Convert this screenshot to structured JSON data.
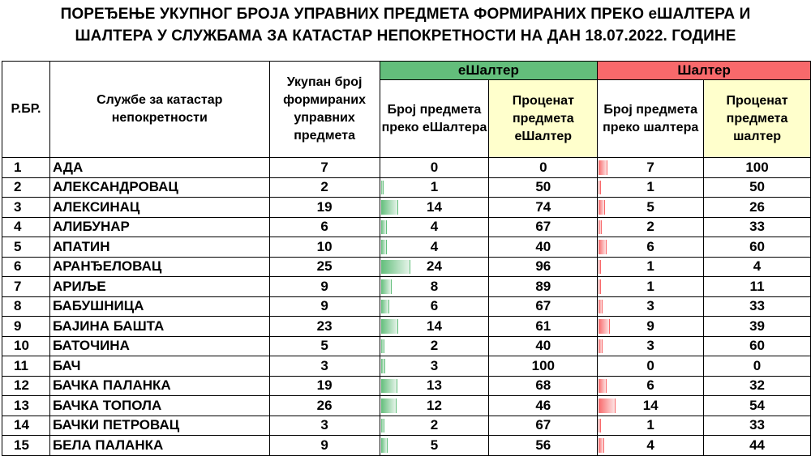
{
  "title": {
    "line1": "ПОРЕЂЕЊЕ УКУПНОГ БРОЈА УПРАВНИХ ПРЕДМЕТА ФОРМИРАНИХ ПРЕКО еШАЛТЕРА И",
    "line2": "ШАЛТЕРА У СЛУЖБАМА ЗА КАТАСТАР НЕПОКРЕТНОСТИ НА ДАН 18.07.2022. ГОДИНЕ"
  },
  "headers": {
    "rbr": "Р.БР.",
    "office": "Службе за катастар непокретности",
    "total": "Укупан број формираних управних предмета",
    "group_e": "еШалтер",
    "group_s": "Шалтер",
    "e_count": "Број предмета преко еШалтера",
    "e_percent": "Проценат предмета еШалтер",
    "s_count": "Број предмета преко шалтера",
    "s_percent": "Проценат предмета шалтер"
  },
  "colors": {
    "eshalter": "#63be7b",
    "shalter": "#f8696b",
    "percent_header": "#ffffcc"
  },
  "rows": [
    {
      "rbr": "1",
      "name": "АДА",
      "total": "7",
      "e_count": "0",
      "e_pct": "0",
      "s_count": "7",
      "s_pct": "100"
    },
    {
      "rbr": "2",
      "name": "АЛЕКСАНДРОВАЦ",
      "total": "2",
      "e_count": "1",
      "e_pct": "50",
      "s_count": "1",
      "s_pct": "50"
    },
    {
      "rbr": "3",
      "name": "АЛЕКСИНАЦ",
      "total": "19",
      "e_count": "14",
      "e_pct": "74",
      "s_count": "5",
      "s_pct": "26"
    },
    {
      "rbr": "4",
      "name": "АЛИБУНАР",
      "total": "6",
      "e_count": "4",
      "e_pct": "67",
      "s_count": "2",
      "s_pct": "33"
    },
    {
      "rbr": "5",
      "name": "АПАТИН",
      "total": "10",
      "e_count": "4",
      "e_pct": "40",
      "s_count": "6",
      "s_pct": "60"
    },
    {
      "rbr": "6",
      "name": "АРАНЂЕЛОВАЦ",
      "total": "25",
      "e_count": "24",
      "e_pct": "96",
      "s_count": "1",
      "s_pct": "4"
    },
    {
      "rbr": "7",
      "name": "АРИЉЕ",
      "total": "9",
      "e_count": "8",
      "e_pct": "89",
      "s_count": "1",
      "s_pct": "11"
    },
    {
      "rbr": "8",
      "name": "БАБУШНИЦА",
      "total": "9",
      "e_count": "6",
      "e_pct": "67",
      "s_count": "3",
      "s_pct": "33"
    },
    {
      "rbr": "9",
      "name": "БАЈИНА БАШТА",
      "total": "23",
      "e_count": "14",
      "e_pct": "61",
      "s_count": "9",
      "s_pct": "39"
    },
    {
      "rbr": "10",
      "name": "БАТОЧИНА",
      "total": "5",
      "e_count": "2",
      "e_pct": "40",
      "s_count": "3",
      "s_pct": "60"
    },
    {
      "rbr": "11",
      "name": "БАЧ",
      "total": "3",
      "e_count": "3",
      "e_pct": "100",
      "s_count": "0",
      "s_pct": "0"
    },
    {
      "rbr": "12",
      "name": "БАЧКА ПАЛАНКА",
      "total": "19",
      "e_count": "13",
      "e_pct": "68",
      "s_count": "6",
      "s_pct": "32"
    },
    {
      "rbr": "13",
      "name": "БАЧКА ТОПОЛА",
      "total": "26",
      "e_count": "12",
      "e_pct": "46",
      "s_count": "14",
      "s_pct": "54"
    },
    {
      "rbr": "14",
      "name": "БАЧКИ ПЕТРОВАЦ",
      "total": "3",
      "e_count": "2",
      "e_pct": "67",
      "s_count": "1",
      "s_pct": "33"
    },
    {
      "rbr": "15",
      "name": "БЕЛА ПАЛАНКА",
      "total": "9",
      "e_count": "5",
      "e_pct": "56",
      "s_count": "4",
      "s_pct": "44"
    }
  ]
}
